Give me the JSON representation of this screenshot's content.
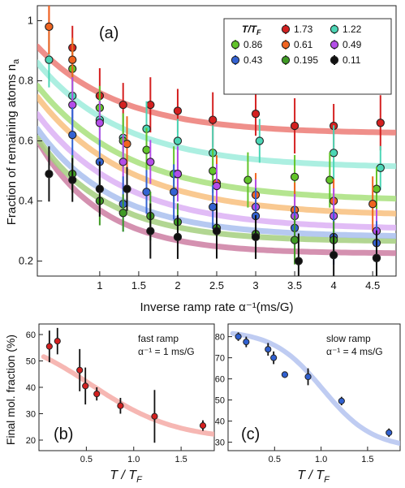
{
  "chart_data": [
    {
      "panel": "(a)",
      "type": "scatter",
      "xlabel": "Inverse ramp rate α⁻¹(ms/G)",
      "ylabel": "Fraction of remaining atoms n",
      "ylabel_sub": "a",
      "xlim": [
        0.2,
        4.8
      ],
      "ylim": [
        0.15,
        1.05
      ],
      "xticks": [
        1,
        1.5,
        2,
        2.5,
        3,
        3.5,
        4,
        4.5
      ],
      "xtick_labels": [
        "1",
        "1.5",
        "2",
        "2.5",
        "3",
        "3.5",
        "4",
        "4.5"
      ],
      "yticks": [
        0.2,
        0.4,
        0.6,
        0.8,
        1.0
      ],
      "ytick_labels": [
        "0.2",
        "0.4",
        "0.6",
        "0.8",
        "1"
      ],
      "legend_title": "T/T_F",
      "legend_placement": "top-right",
      "series": [
        {
          "name": "1.73",
          "color": "#d42020",
          "fit_color": "#ec7b76",
          "fit": {
            "a": 0.624,
            "b": 0.351,
            "k": 0.95
          },
          "x": [
            0.35,
            0.65,
            1.0,
            1.3,
            1.65,
            2.0,
            2.45,
            3.0,
            3.5,
            4.0,
            4.6
          ],
          "y": [
            0.98,
            0.91,
            0.75,
            0.72,
            0.72,
            0.7,
            0.67,
            0.69,
            0.65,
            0.65,
            0.66
          ]
        },
        {
          "name": "1.22",
          "color": "#4cd6b6",
          "fit_color": "#9eecdc",
          "fit": {
            "a": 0.51,
            "b": 0.42,
            "k": 0.9
          },
          "x": [
            0.35,
            0.65,
            1.0,
            1.3,
            1.6,
            2.0,
            2.45,
            3.05,
            4.0,
            4.6
          ],
          "y": [
            0.87,
            0.75,
            0.67,
            0.61,
            0.64,
            0.6,
            0.56,
            0.6,
            0.56,
            0.51
          ]
        },
        {
          "name": "0.86",
          "color": "#62c42a",
          "fit_color": "#a8e07c",
          "fit": {
            "a": 0.4,
            "b": 0.455,
            "k": 0.85
          },
          "x": [
            0.65,
            1.0,
            1.3,
            1.6,
            1.95,
            2.45,
            2.9,
            3.5,
            3.95,
            4.55
          ],
          "y": [
            0.84,
            0.71,
            0.6,
            0.57,
            0.49,
            0.5,
            0.47,
            0.48,
            0.47,
            0.44
          ]
        },
        {
          "name": "0.61",
          "color": "#f06420",
          "fit_color": "#f8c07e",
          "fit": {
            "a": 0.35,
            "b": 0.47,
            "k": 0.85
          },
          "x": [
            0.35,
            0.65,
            1.35,
            2.0,
            2.5,
            3.0,
            3.5,
            4.0,
            4.5
          ],
          "y": [
            0.98,
            0.87,
            0.59,
            0.49,
            0.46,
            0.42,
            0.37,
            0.4,
            0.39
          ]
        },
        {
          "name": "0.49",
          "color": "#b44de8",
          "fit_color": "#dcb0f4",
          "fit": {
            "a": 0.305,
            "b": 0.46,
            "k": 0.9
          },
          "x": [
            0.65,
            1.0,
            1.3,
            1.65,
            2.0,
            2.5,
            3.0,
            3.5,
            4.0,
            4.55
          ],
          "y": [
            0.72,
            0.66,
            0.53,
            0.53,
            0.49,
            0.45,
            0.38,
            0.35,
            0.35,
            0.3
          ]
        },
        {
          "name": "0.43",
          "color": "#3462d2",
          "fit_color": "#a9c0ee",
          "fit": {
            "a": 0.28,
            "b": 0.44,
            "k": 1.0
          },
          "x": [
            0.65,
            1.0,
            1.3,
            1.6,
            1.95,
            2.45,
            3.0,
            3.5,
            4.0,
            4.55
          ],
          "y": [
            0.62,
            0.53,
            0.39,
            0.43,
            0.43,
            0.38,
            0.35,
            0.31,
            0.28,
            0.26
          ]
        },
        {
          "name": "0.195",
          "color": "#3f9a24",
          "fit_color": "#a4cf7f",
          "fit": {
            "a": 0.265,
            "b": 0.43,
            "k": 1.1
          },
          "x": [
            0.65,
            1.0,
            1.3,
            1.65,
            2.0,
            2.5,
            3.0,
            3.5,
            4.0,
            4.55
          ],
          "y": [
            0.49,
            0.4,
            0.36,
            0.35,
            0.33,
            0.31,
            0.29,
            0.27,
            0.27,
            0.21
          ]
        },
        {
          "name": "0.11",
          "color": "#111111",
          "fit_color": "#cc7ea2",
          "fit": {
            "a": 0.225,
            "b": 0.48,
            "k": 1.2
          },
          "x": [
            0.35,
            0.65,
            1.0,
            1.35,
            1.65,
            2.0,
            2.5,
            3.0,
            3.55,
            4.0,
            4.55
          ],
          "y": [
            0.49,
            0.47,
            0.44,
            0.44,
            0.3,
            0.28,
            0.3,
            0.28,
            0.2,
            0.22,
            0.21
          ]
        }
      ]
    },
    {
      "panel": "(b)",
      "type": "scatter",
      "annotation_line1": "fast ramp",
      "annotation_line2": "α⁻¹ = 1 ms/G",
      "ylabel": "Final mol. fraction (%)",
      "xlabel": "T / T",
      "xlabel_sub": "F",
      "xlim": [
        0,
        1.85
      ],
      "ylim": [
        16,
        64
      ],
      "xticks": [
        0.5,
        1.0,
        1.5
      ],
      "xtick_labels": [
        "0.5",
        "1.0",
        "1.5"
      ],
      "yticks": [
        20,
        30,
        40,
        50,
        60
      ],
      "ytick_labels": [
        "20",
        "30",
        "40",
        "50",
        "60"
      ],
      "marker_color": "#d42020",
      "fit_color": "#f4aaa6",
      "x": [
        0.11,
        0.195,
        0.43,
        0.49,
        0.61,
        0.86,
        1.22,
        1.73
      ],
      "y": [
        55.5,
        57.5,
        46.5,
        40.5,
        37.5,
        33,
        29,
        25.5
      ],
      "err": [
        6,
        5,
        8,
        7,
        2.5,
        3,
        10,
        2
      ]
    },
    {
      "panel": "(c)",
      "type": "scatter",
      "annotation_line1": "slow ramp",
      "annotation_line2": "α⁻¹ = 4 ms/G",
      "xlabel": "T / T",
      "xlabel_sub": "F",
      "xlim": [
        0,
        1.85
      ],
      "ylim": [
        26,
        86
      ],
      "xticks": [
        0.5,
        1.0,
        1.5
      ],
      "xtick_labels": [
        "0.5",
        "1.0",
        "1.5"
      ],
      "yticks": [
        30,
        40,
        50,
        60,
        70,
        80
      ],
      "ytick_labels": [
        "30",
        "40",
        "50",
        "60",
        "70",
        "80"
      ],
      "marker_color": "#3060d0",
      "fit_color": "#b4c3f0",
      "x": [
        0.11,
        0.195,
        0.43,
        0.49,
        0.61,
        0.86,
        1.22,
        1.73
      ],
      "y": [
        80,
        77.5,
        74,
        70,
        62,
        61,
        49.5,
        34.5
      ],
      "err": [
        2,
        2.5,
        3,
        3,
        1.5,
        4,
        2,
        2
      ]
    }
  ]
}
